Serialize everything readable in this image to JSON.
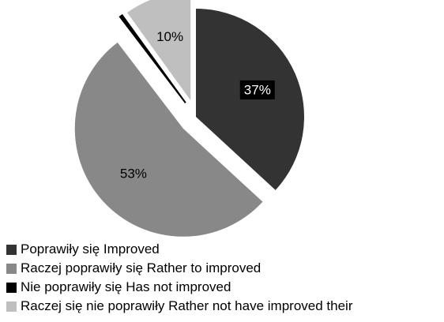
{
  "chart_data": {
    "type": "pie",
    "title": "",
    "slices": [
      {
        "label": "Poprawiły się Improved",
        "value": 37,
        "data_label": "37%",
        "color": "#333333",
        "label_color": "#ffffff",
        "label_bg": "#000000",
        "exploded": false
      },
      {
        "label": "Raczej poprawiły się Rather to improved",
        "value": 53,
        "data_label": "53%",
        "color": "#888888",
        "label_color": "#000000",
        "label_bg": "",
        "exploded": true
      },
      {
        "label": "Nie poprawiły się Has not improved",
        "value": 0.4,
        "data_label": "",
        "color": "#000000",
        "label_color": "#000000",
        "label_bg": "",
        "exploded": true
      },
      {
        "label": "Raczej się nie poprawiły Rather not have improved their",
        "value": 10,
        "data_label": "10%",
        "color": "#bfbfbf",
        "label_color": "#000000",
        "label_bg": "",
        "exploded": true
      }
    ],
    "legend_position": "bottom"
  }
}
